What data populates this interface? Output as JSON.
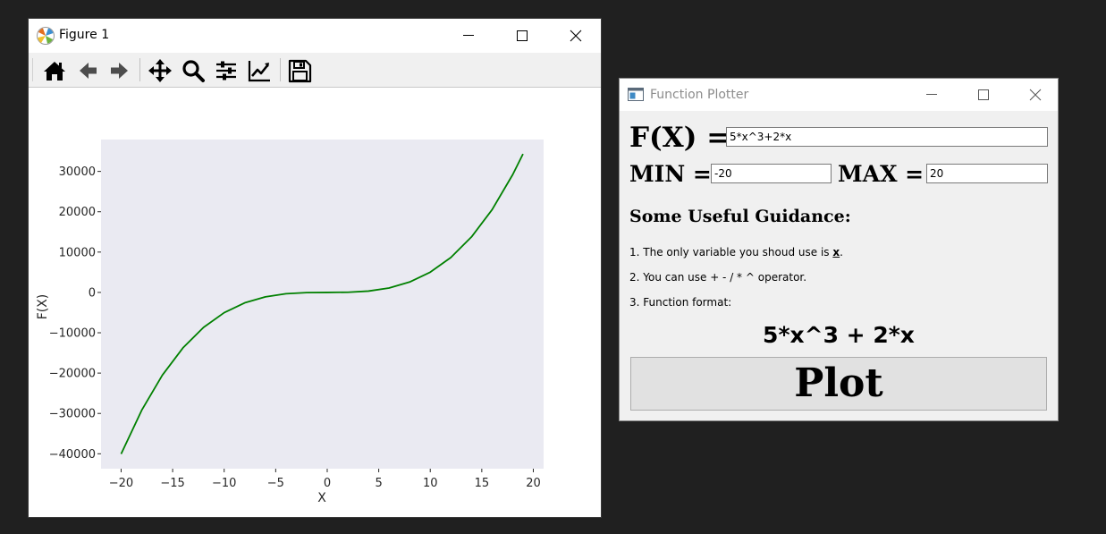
{
  "figure_window": {
    "title": "Figure 1",
    "toolbar": [
      {
        "icon": "home-icon"
      },
      {
        "icon": "back-arrow-icon"
      },
      {
        "icon": "forward-arrow-icon"
      },
      {
        "icon": "pan-move-icon"
      },
      {
        "icon": "zoom-magnifier-icon"
      },
      {
        "icon": "subplots-config-icon"
      },
      {
        "icon": "edit-axis-icon"
      },
      {
        "icon": "save-floppy-icon"
      }
    ]
  },
  "chart_data": {
    "type": "line",
    "xlabel": "X",
    "ylabel": "F(X)",
    "xlim": [
      -21.95,
      21.0
    ],
    "ylim": [
      -43700,
      37900
    ],
    "x_ticks": [
      -20,
      -15,
      -10,
      -5,
      0,
      5,
      10,
      15,
      20
    ],
    "x_tick_labels": [
      "−20",
      "−15",
      "−10",
      "−5",
      "0",
      "5",
      "10",
      "15",
      "20"
    ],
    "y_ticks": [
      -40000,
      -30000,
      -20000,
      -10000,
      0,
      10000,
      20000,
      30000
    ],
    "y_tick_labels": [
      "−40000",
      "−30000",
      "−20000",
      "−10000",
      "0",
      "10000",
      "20000",
      "30000"
    ],
    "series": [
      {
        "color": "#008000",
        "x": [
          -20,
          -18,
          -16,
          -14,
          -12,
          -10,
          -8,
          -6,
          -4,
          -2,
          0,
          2,
          4,
          6,
          8,
          10,
          12,
          14,
          16,
          18,
          19
        ],
        "y": [
          -40040,
          -29196,
          -20512,
          -13748,
          -8664,
          -5020,
          -2576,
          -1092,
          -328,
          -44,
          0,
          44,
          328,
          1092,
          2576,
          5020,
          8664,
          13748,
          20512,
          29196,
          34333
        ]
      }
    ],
    "grid": false,
    "plot_background": "#eaeaf2"
  },
  "function_plotter": {
    "title": "Function Plotter",
    "fx_label": "F(X) =",
    "fx_value": "5*x^3+2*x",
    "min_label": "MIN =",
    "min_value": "-20",
    "max_label": "MAX =",
    "max_value": "20",
    "guidance_heading": "Some Useful Guidance:",
    "guidance": {
      "line1_prefix": "1. The only variable you shoud use is ",
      "line1_var": "x",
      "line1_suffix": ".",
      "line2": "2. You can use + - / * ^ operator.",
      "line3": "3. Function format:"
    },
    "format_example": "5*x^3 + 2*x",
    "plot_button": "Plot"
  }
}
